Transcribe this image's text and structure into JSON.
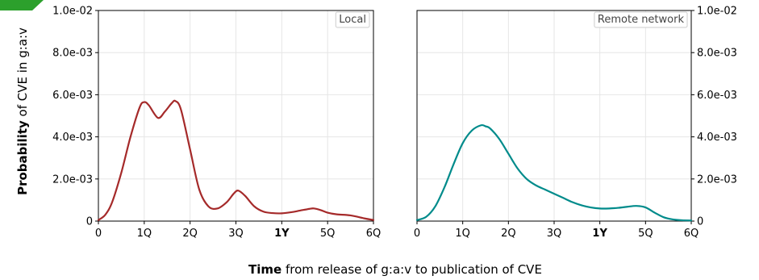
{
  "figure": {
    "ylabel_bold": "Probability",
    "ylabel_rest": " of CVE in g:a:v",
    "xlabel_bold": "Time",
    "xlabel_rest": " from release of g:a:v to publication of CVE",
    "corner_badge_color": "#2ca02c"
  },
  "chart_data": [
    {
      "type": "line",
      "legend": "Local",
      "legend_position": "top-right",
      "color": "#a52a2a",
      "grid": true,
      "xlim": [
        0,
        6
      ],
      "ylim": [
        0,
        0.01
      ],
      "x_ticks": [
        {
          "value": 0,
          "label": "0",
          "bold": false
        },
        {
          "value": 1,
          "label": "1Q",
          "bold": false
        },
        {
          "value": 2,
          "label": "2Q",
          "bold": false
        },
        {
          "value": 3,
          "label": "3Q",
          "bold": false
        },
        {
          "value": 4,
          "label": "1Y",
          "bold": true
        },
        {
          "value": 5,
          "label": "5Q",
          "bold": false
        },
        {
          "value": 6,
          "label": "6Q",
          "bold": false
        }
      ],
      "y_ticks": [
        {
          "value": 0,
          "label": "0"
        },
        {
          "value": 0.002,
          "label": "2.0e-03"
        },
        {
          "value": 0.004,
          "label": "4.0e-03"
        },
        {
          "value": 0.006,
          "label": "6.0e-03"
        },
        {
          "value": 0.008,
          "label": "8.0e-03"
        },
        {
          "value": 0.01,
          "label": "1.0e-02"
        }
      ],
      "y_axis_side": "left",
      "x": [
        0,
        0.15,
        0.3,
        0.5,
        0.7,
        0.9,
        1.0,
        1.1,
        1.3,
        1.45,
        1.6,
        1.68,
        1.8,
        2.0,
        2.2,
        2.4,
        2.6,
        2.8,
        2.95,
        3.05,
        3.2,
        3.4,
        3.6,
        3.8,
        4.0,
        4.2,
        4.4,
        4.6,
        4.7,
        4.85,
        5.0,
        5.2,
        5.5,
        5.8,
        6.0
      ],
      "y": [
        5e-05,
        0.0003,
        0.0009,
        0.0023,
        0.004,
        0.0054,
        0.00565,
        0.0055,
        0.0049,
        0.0052,
        0.0056,
        0.0057,
        0.0053,
        0.0034,
        0.0015,
        0.0007,
        0.0006,
        0.0009,
        0.0013,
        0.00145,
        0.0012,
        0.0007,
        0.00045,
        0.00038,
        0.00037,
        0.00042,
        0.0005,
        0.00058,
        0.0006,
        0.00052,
        0.0004,
        0.00032,
        0.00027,
        0.00013,
        5e-05
      ]
    },
    {
      "type": "line",
      "legend": "Remote network",
      "legend_position": "top-right",
      "color": "#008b8b",
      "grid": true,
      "xlim": [
        0,
        6
      ],
      "ylim": [
        0,
        0.01
      ],
      "x_ticks": [
        {
          "value": 0,
          "label": "0",
          "bold": false
        },
        {
          "value": 1,
          "label": "1Q",
          "bold": false
        },
        {
          "value": 2,
          "label": "2Q",
          "bold": false
        },
        {
          "value": 3,
          "label": "3Q",
          "bold": false
        },
        {
          "value": 4,
          "label": "1Y",
          "bold": true
        },
        {
          "value": 5,
          "label": "5Q",
          "bold": false
        },
        {
          "value": 6,
          "label": "6Q",
          "bold": false
        }
      ],
      "y_ticks": [
        {
          "value": 0,
          "label": "0"
        },
        {
          "value": 0.002,
          "label": "2.0e-03"
        },
        {
          "value": 0.004,
          "label": "4.0e-03"
        },
        {
          "value": 0.006,
          "label": "6.0e-03"
        },
        {
          "value": 0.008,
          "label": "8.0e-03"
        },
        {
          "value": 0.01,
          "label": "1.0e-02"
        }
      ],
      "y_axis_side": "right",
      "x": [
        0,
        0.2,
        0.4,
        0.6,
        0.8,
        1.0,
        1.2,
        1.4,
        1.5,
        1.6,
        1.8,
        2.0,
        2.2,
        2.4,
        2.6,
        2.8,
        3.0,
        3.2,
        3.4,
        3.6,
        3.8,
        4.0,
        4.2,
        4.4,
        4.6,
        4.8,
        5.0,
        5.2,
        5.4,
        5.6,
        5.8,
        6.0
      ],
      "y": [
        5e-05,
        0.0002,
        0.0007,
        0.0016,
        0.0027,
        0.0037,
        0.0043,
        0.00455,
        0.0045,
        0.0044,
        0.0039,
        0.0032,
        0.0025,
        0.002,
        0.0017,
        0.0015,
        0.0013,
        0.0011,
        0.0009,
        0.00075,
        0.00065,
        0.0006,
        0.0006,
        0.00063,
        0.00068,
        0.00072,
        0.00065,
        0.0004,
        0.00018,
        8e-05,
        4e-05,
        3e-05
      ]
    }
  ]
}
